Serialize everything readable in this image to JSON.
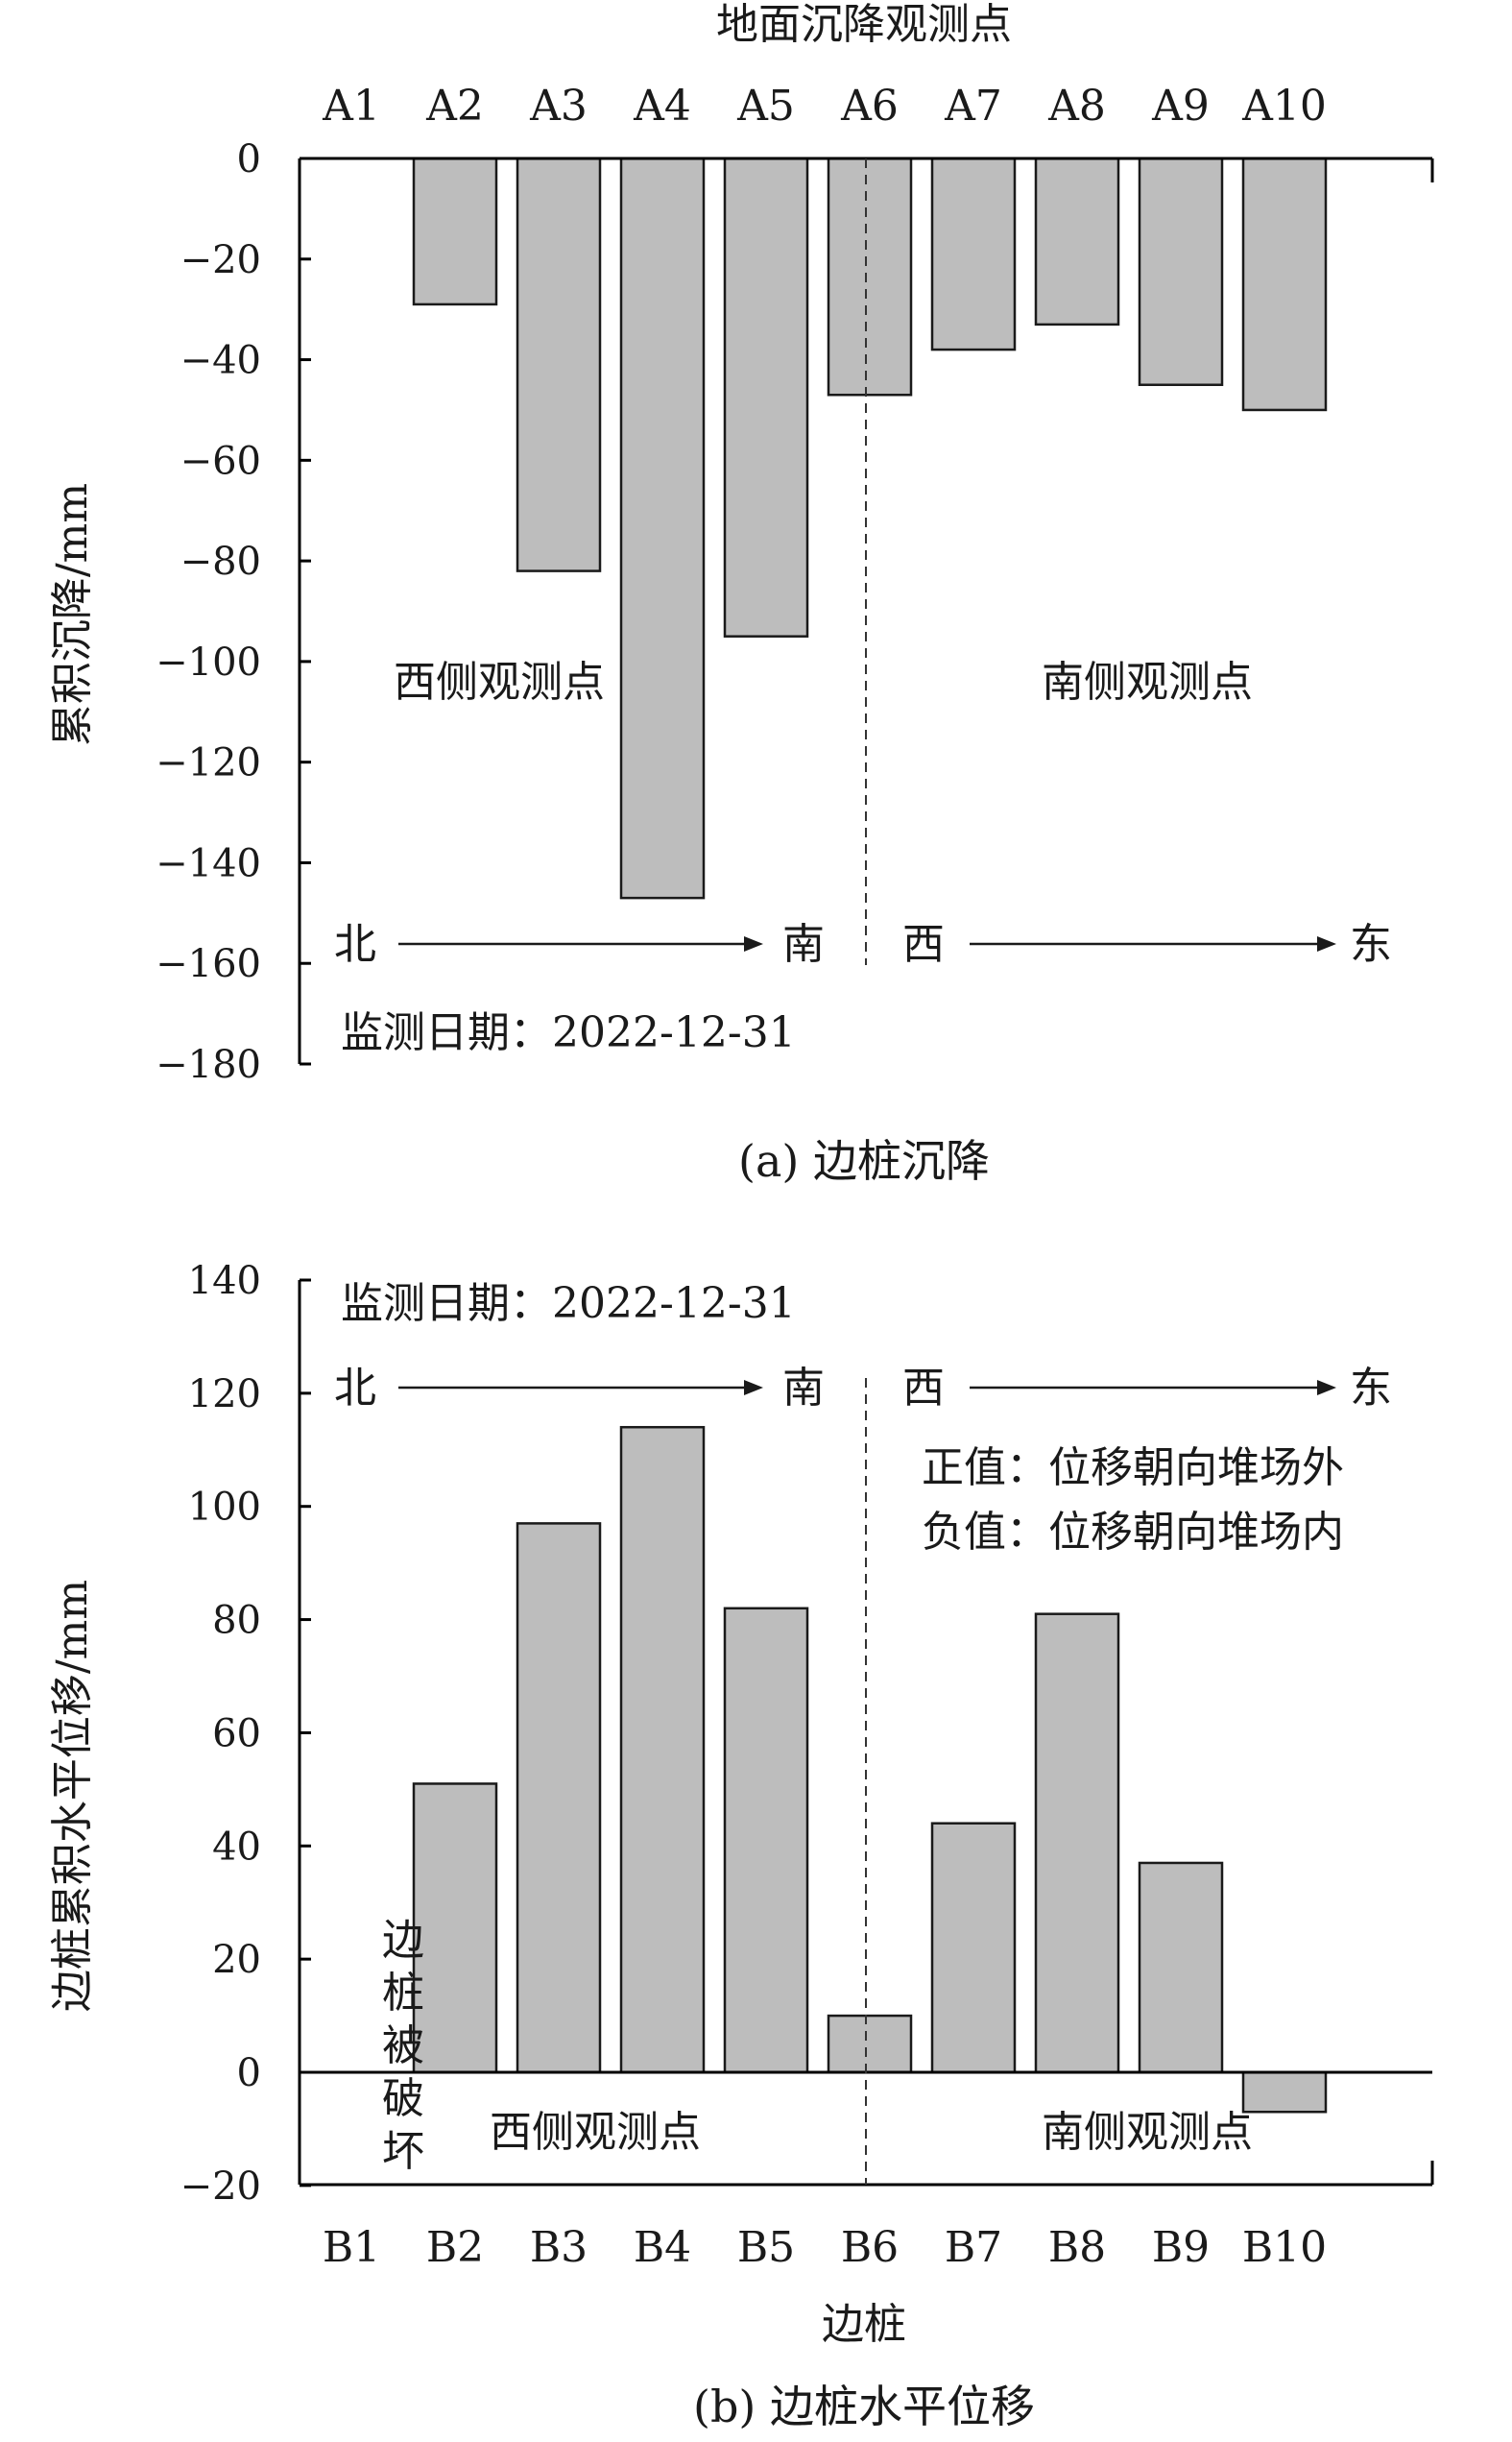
{
  "chart_data": [
    {
      "type": "bar",
      "caption": "(a) 边桩沉降",
      "xlabel": "地面沉降观测点",
      "ylabel": "累积沉降/mm",
      "categories": [
        "A1",
        "A2",
        "A3",
        "A4",
        "A5",
        "A6",
        "A7",
        "A8",
        "A9",
        "A10"
      ],
      "values": [
        null,
        -29,
        -82,
        -147,
        -95,
        -47,
        -38,
        -33,
        -45,
        -50
      ],
      "ylim": [
        -180,
        0
      ],
      "yticks": [
        "0",
        "−20",
        "−40",
        "−60",
        "−80",
        "−100",
        "−120",
        "−140",
        "−160",
        "−180"
      ],
      "x_axis_position": "top",
      "annotations": {
        "west": "西侧观测点",
        "south": "南侧观测点",
        "date": "监测日期：2022-12-31",
        "north_dir": "北",
        "south_dir": "南",
        "west_dir": "西",
        "east_dir": "东"
      }
    },
    {
      "type": "bar",
      "caption": "(b) 边桩水平位移",
      "xlabel": "边桩",
      "ylabel": "边桩累积水平位移/mm",
      "categories": [
        "B1",
        "B2",
        "B3",
        "B4",
        "B5",
        "B6",
        "B7",
        "B8",
        "B9",
        "B10"
      ],
      "values": [
        null,
        51,
        97,
        114,
        82,
        10,
        44,
        81,
        37,
        -7
      ],
      "ylim": [
        -20,
        140
      ],
      "yticks": [
        "140",
        "120",
        "100",
        "80",
        "60",
        "40",
        "20",
        "0",
        "−20"
      ],
      "annotations": {
        "west": "西侧观测点",
        "south": "南侧观测点",
        "date": "监测日期：2022-12-31",
        "north_dir": "北",
        "south_dir": "南",
        "west_dir": "西",
        "east_dir": "东",
        "positive": "正值：位移朝向堆场外",
        "negative": "负值：位移朝向堆场内",
        "destroyed": [
          "边",
          "桩",
          "被",
          "破",
          "坏"
        ]
      }
    }
  ],
  "colors": {
    "bar_fill": "#bdbdbd",
    "bar_stroke": "#1a1a1a"
  }
}
